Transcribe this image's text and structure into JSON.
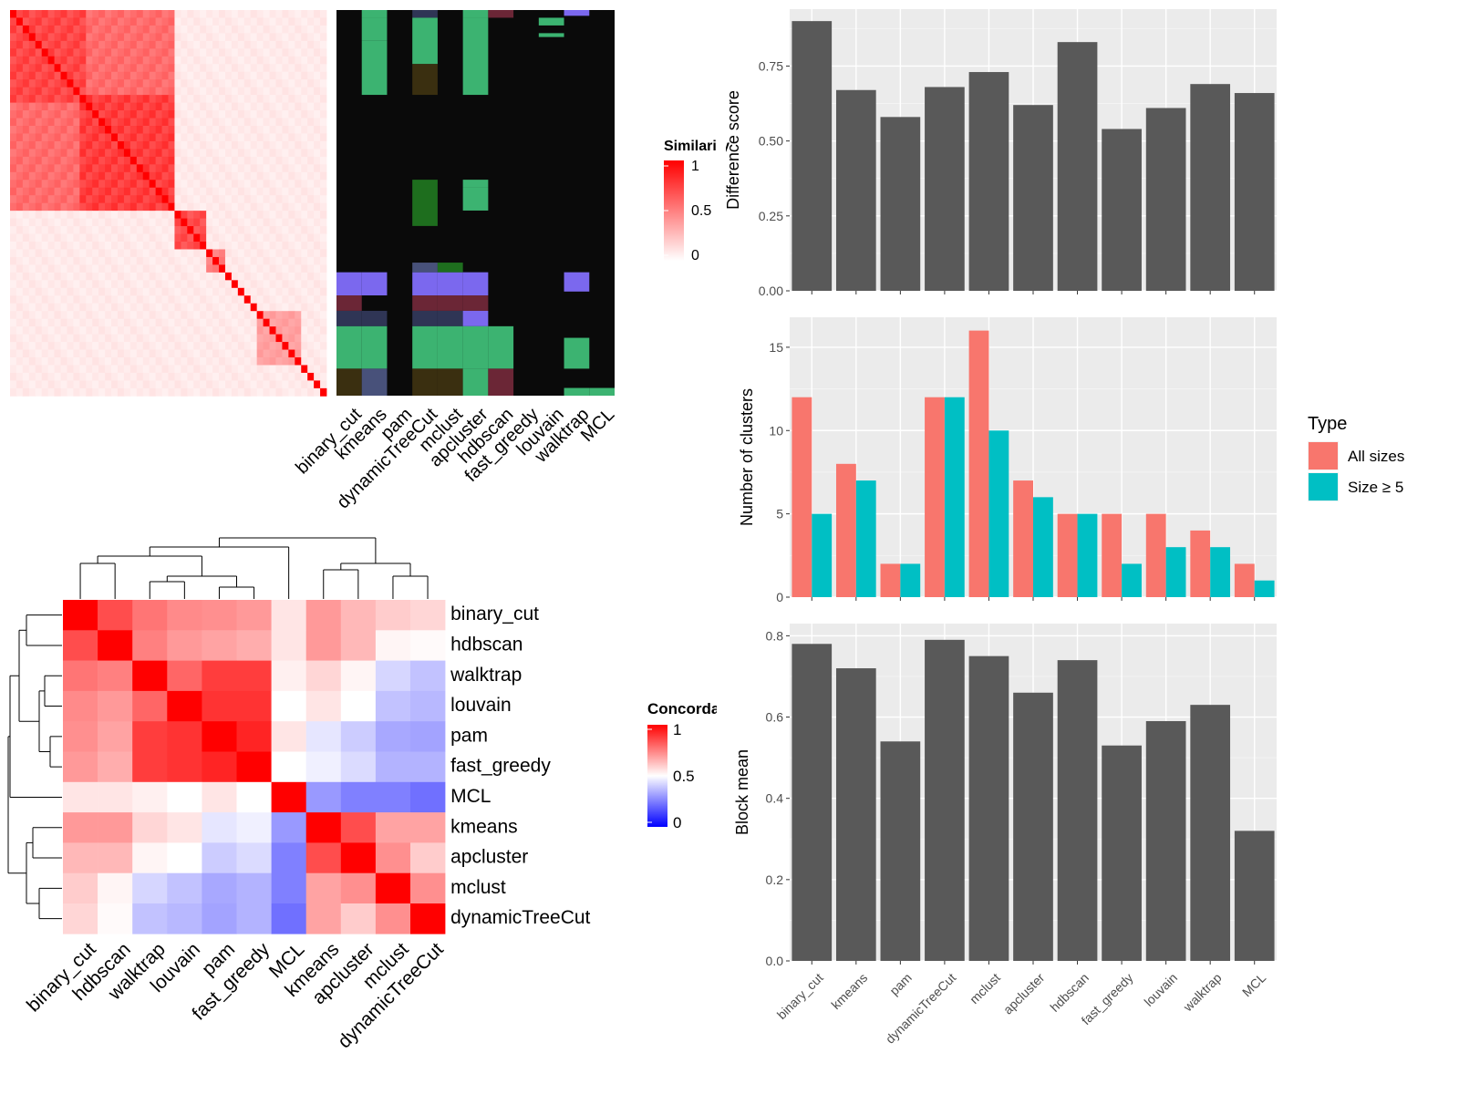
{
  "chart_data": [
    {
      "type": "heatmap",
      "panel": "similarity-heatmap",
      "legend_title": "Similarity",
      "legend_ticks": [
        "1",
        "0.5",
        "0"
      ],
      "colors": {
        "low": "#ffffff",
        "high": "#ff0000"
      },
      "blocks": [
        {
          "from": 0.0,
          "to": 0.24,
          "level": 0.78
        },
        {
          "from": 0.0,
          "to": 0.52,
          "level": 0.62
        },
        {
          "from": 0.22,
          "to": 0.52,
          "level": 0.82
        },
        {
          "from": 0.52,
          "to": 0.62,
          "level": 0.75
        },
        {
          "from": 0.62,
          "to": 0.68,
          "level": 0.55
        },
        {
          "from": 0.78,
          "to": 0.92,
          "level": 0.4
        }
      ]
    },
    {
      "type": "heatmap",
      "panel": "cluster-membership",
      "columns": [
        "binary_cut",
        "kmeans",
        "pam",
        "dynamicTreeCut",
        "mclust",
        "apcluster",
        "hdbscan",
        "fast_greedy",
        "louvain",
        "walktrap",
        "MCL"
      ],
      "background": "#0a0a0a",
      "cluster_colors": [
        "#3cb371",
        "#7b68ee",
        "#2f3555",
        "#6b2636",
        "#1e6e1e",
        "#3a2f10",
        "#48517a"
      ],
      "rects": [
        [
          1,
          0.0,
          0.02,
          0
        ],
        [
          1,
          0.02,
          0.08,
          0
        ],
        [
          1,
          0.08,
          0.22,
          0
        ],
        [
          3,
          0.0,
          0.02,
          2
        ],
        [
          3,
          0.02,
          0.14,
          0
        ],
        [
          3,
          0.14,
          0.22,
          5
        ],
        [
          3,
          0.44,
          0.56,
          4
        ],
        [
          5,
          0.0,
          0.02,
          0
        ],
        [
          5,
          0.02,
          0.22,
          0
        ],
        [
          5,
          0.44,
          0.46,
          0
        ],
        [
          5,
          0.46,
          0.52,
          0
        ],
        [
          6,
          0.0,
          0.02,
          3
        ],
        [
          8,
          0.02,
          0.04,
          0
        ],
        [
          8,
          0.06,
          0.07,
          0
        ],
        [
          9,
          0.0,
          0.015,
          1
        ],
        [
          0,
          0.68,
          0.74,
          1
        ],
        [
          1,
          0.68,
          0.74,
          1
        ],
        [
          3,
          0.68,
          0.74,
          1
        ],
        [
          4,
          0.68,
          0.74,
          1
        ],
        [
          5,
          0.68,
          0.74,
          1
        ],
        [
          3,
          0.655,
          0.68,
          6
        ],
        [
          4,
          0.655,
          0.68,
          4
        ],
        [
          0,
          0.74,
          0.78,
          3
        ],
        [
          3,
          0.74,
          0.78,
          3
        ],
        [
          4,
          0.74,
          0.78,
          3
        ],
        [
          5,
          0.74,
          0.78,
          3
        ],
        [
          0,
          0.78,
          0.82,
          2
        ],
        [
          1,
          0.78,
          0.82,
          2
        ],
        [
          3,
          0.78,
          0.82,
          2
        ],
        [
          4,
          0.78,
          0.82,
          2
        ],
        [
          5,
          0.78,
          0.82,
          1
        ],
        [
          0,
          0.82,
          0.93,
          0
        ],
        [
          1,
          0.82,
          0.93,
          0
        ],
        [
          3,
          0.82,
          0.93,
          0
        ],
        [
          4,
          0.82,
          0.93,
          0
        ],
        [
          5,
          0.82,
          0.93,
          0
        ],
        [
          6,
          0.82,
          0.93,
          0
        ],
        [
          9,
          0.68,
          0.73,
          1
        ],
        [
          9,
          0.85,
          0.93,
          0
        ],
        [
          0,
          0.93,
          1.0,
          5
        ],
        [
          1,
          0.93,
          1.0,
          6
        ],
        [
          3,
          0.93,
          1.0,
          5
        ],
        [
          4,
          0.93,
          1.0,
          5
        ],
        [
          5,
          0.93,
          1.0,
          0
        ],
        [
          6,
          0.93,
          1.0,
          3
        ],
        [
          10,
          0.98,
          1.0,
          0
        ],
        [
          9,
          0.98,
          1.0,
          0
        ]
      ]
    },
    {
      "type": "heatmap",
      "panel": "concordance-heatmap",
      "legend_title": "Concordance",
      "legend_ticks": [
        "1",
        "0.5",
        "0"
      ],
      "colors": {
        "low": "#0000ff",
        "mid": "#ffffff",
        "high": "#ff0000"
      },
      "rows": [
        "binary_cut",
        "hdbscan",
        "walktrap",
        "louvain",
        "pam",
        "fast_greedy",
        "MCL",
        "kmeans",
        "apcluster",
        "mclust",
        "dynamicTreeCut"
      ],
      "columns": [
        "binary_cut",
        "hdbscan",
        "walktrap",
        "louvain",
        "pam",
        "fast_greedy",
        "MCL",
        "kmeans",
        "apcluster",
        "mclust",
        "dynamicTreeCut"
      ],
      "values": [
        [
          1.0,
          0.85,
          0.77,
          0.73,
          0.72,
          0.7,
          0.55,
          0.7,
          0.64,
          0.6,
          0.58
        ],
        [
          0.85,
          1.0,
          0.75,
          0.7,
          0.68,
          0.66,
          0.55,
          0.7,
          0.64,
          0.52,
          0.51
        ],
        [
          0.77,
          0.75,
          1.0,
          0.8,
          0.88,
          0.88,
          0.53,
          0.58,
          0.52,
          0.42,
          0.38
        ],
        [
          0.73,
          0.7,
          0.8,
          1.0,
          0.9,
          0.9,
          0.5,
          0.55,
          0.5,
          0.38,
          0.36
        ],
        [
          0.72,
          0.68,
          0.88,
          0.9,
          1.0,
          0.93,
          0.55,
          0.45,
          0.4,
          0.33,
          0.32
        ],
        [
          0.7,
          0.66,
          0.88,
          0.9,
          0.93,
          1.0,
          0.5,
          0.47,
          0.43,
          0.35,
          0.35
        ],
        [
          0.55,
          0.55,
          0.53,
          0.5,
          0.55,
          0.5,
          1.0,
          0.3,
          0.25,
          0.25,
          0.22
        ],
        [
          0.7,
          0.7,
          0.58,
          0.55,
          0.45,
          0.47,
          0.3,
          1.0,
          0.85,
          0.68,
          0.68
        ],
        [
          0.64,
          0.64,
          0.52,
          0.5,
          0.4,
          0.43,
          0.25,
          0.85,
          1.0,
          0.72,
          0.6
        ],
        [
          0.6,
          0.52,
          0.42,
          0.38,
          0.33,
          0.35,
          0.25,
          0.68,
          0.72,
          1.0,
          0.72
        ],
        [
          0.58,
          0.51,
          0.38,
          0.36,
          0.32,
          0.35,
          0.22,
          0.68,
          0.6,
          0.72,
          1.0
        ]
      ]
    },
    {
      "type": "bar",
      "panel": "difference-score",
      "categories": [
        "binary_cut",
        "kmeans",
        "pam",
        "dynamicTreeCut",
        "mclust",
        "apcluster",
        "hdbscan",
        "fast_greedy",
        "louvain",
        "walktrap",
        "MCL"
      ],
      "values": [
        0.9,
        0.67,
        0.58,
        0.68,
        0.73,
        0.62,
        0.83,
        0.54,
        0.61,
        0.69,
        0.66
      ],
      "ylabel": "Difference score",
      "ylim": [
        0,
        0.94
      ],
      "yticks": [
        0.0,
        0.25,
        0.5,
        0.75
      ],
      "ytick_labels": [
        "0.00",
        "0.25",
        "0.50",
        "0.75"
      ],
      "bar_color": "#595959"
    },
    {
      "type": "bar",
      "panel": "number-of-clusters",
      "categories": [
        "binary_cut",
        "kmeans",
        "pam",
        "dynamicTreeCut",
        "mclust",
        "apcluster",
        "hdbscan",
        "fast_greedy",
        "louvain",
        "walktrap",
        "MCL"
      ],
      "series": [
        {
          "name": "All sizes",
          "color": "#f8766d",
          "values": [
            12,
            8,
            2,
            12,
            16,
            7,
            5,
            5,
            5,
            4,
            2
          ]
        },
        {
          "name": "Size ≥ 5",
          "color": "#00bfc4",
          "values": [
            5,
            7,
            2,
            12,
            10,
            6,
            5,
            2,
            3,
            3,
            1
          ]
        }
      ],
      "ylabel": "Number of clusters",
      "ylim": [
        0,
        16.8
      ],
      "yticks": [
        0,
        5,
        10,
        15
      ],
      "ytick_labels": [
        "0",
        "5",
        "10",
        "15"
      ],
      "legend_title": "Type",
      "legend_position": "right"
    },
    {
      "type": "bar",
      "panel": "block-mean",
      "categories": [
        "binary_cut",
        "kmeans",
        "pam",
        "dynamicTreeCut",
        "mclust",
        "apcluster",
        "hdbscan",
        "fast_greedy",
        "louvain",
        "walktrap",
        "MCL"
      ],
      "values": [
        0.78,
        0.72,
        0.54,
        0.79,
        0.75,
        0.66,
        0.74,
        0.53,
        0.59,
        0.63,
        0.32
      ],
      "ylabel": "Block mean",
      "ylim": [
        0,
        0.83
      ],
      "yticks": [
        0.0,
        0.2,
        0.4,
        0.6,
        0.8
      ],
      "ytick_labels": [
        "0.0",
        "0.2",
        "0.4",
        "0.6",
        "0.8"
      ],
      "bar_color": "#595959"
    }
  ]
}
